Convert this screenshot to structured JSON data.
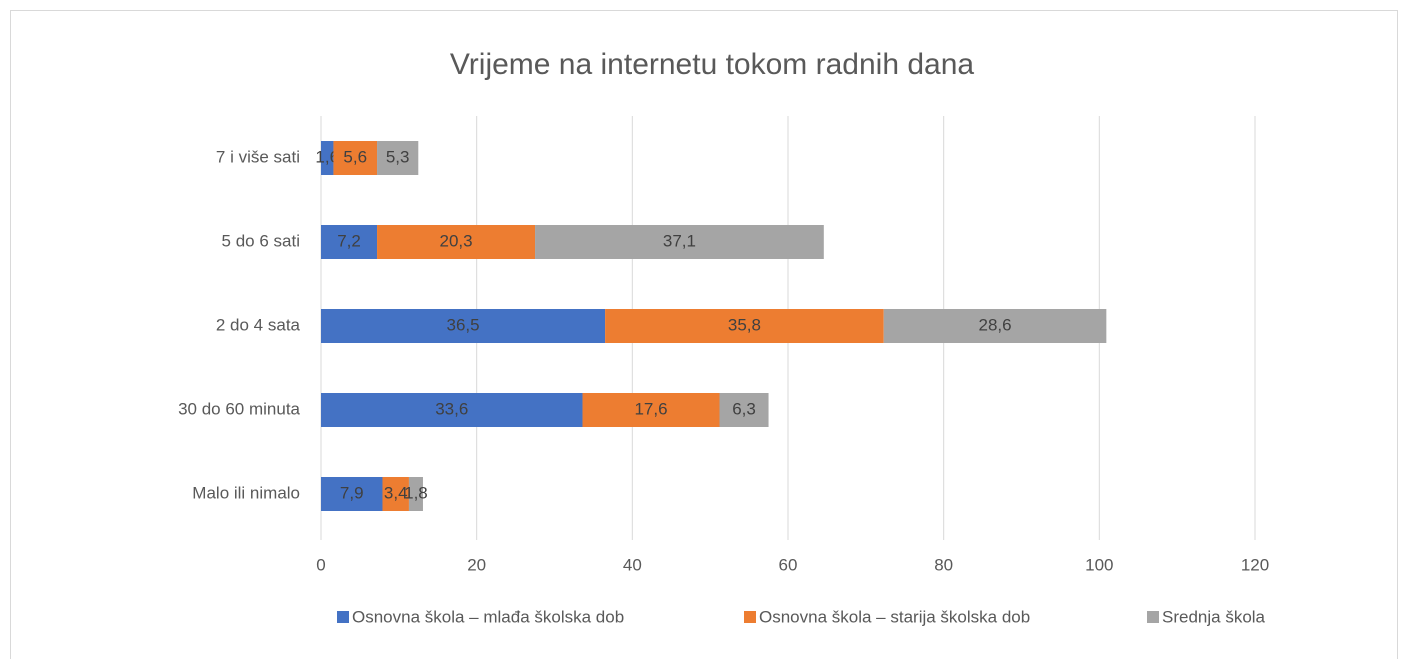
{
  "chart_data": {
    "type": "stacked-bar-horizontal",
    "title": "Vrijeme na internetu tokom radnih dana",
    "categories": [
      "7 i više sati",
      "5 do 6 sati",
      "2 do 4 sata",
      "30 do 60 minuta",
      "Malo ili nimalo"
    ],
    "series": [
      {
        "name": "Osnovna škola – mlađa školska dob",
        "color": "#4472c4",
        "values": [
          1.6,
          7.2,
          36.5,
          33.6,
          7.9
        ],
        "value_labels": [
          "1,6",
          "7,2",
          "36,5",
          "33,6",
          "7,9"
        ]
      },
      {
        "name": "Osnovna škola – starija školska dob",
        "color": "#ed7d31",
        "values": [
          5.6,
          20.3,
          35.8,
          17.6,
          3.4
        ],
        "value_labels": [
          "5,6",
          "20,3",
          "35,8",
          "17,6",
          "3,4"
        ]
      },
      {
        "name": "Srednja škola",
        "color": "#a5a5a5",
        "values": [
          5.3,
          37.1,
          28.6,
          6.3,
          1.8
        ],
        "value_labels": [
          "5,3",
          "37,1",
          "28,6",
          "6,3",
          "1,8"
        ]
      }
    ],
    "xlim": [
      0,
      120
    ],
    "xticks": [
      0,
      20,
      40,
      60,
      80,
      100,
      120
    ],
    "grid": true,
    "legend": "bottom"
  }
}
